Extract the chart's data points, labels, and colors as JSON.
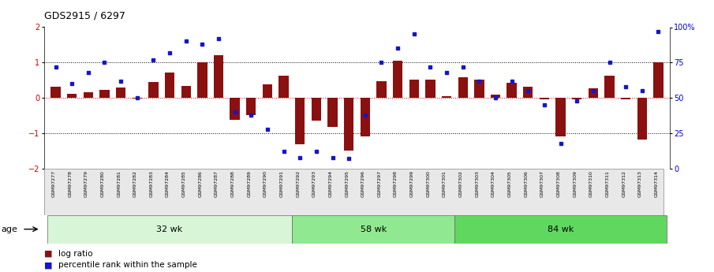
{
  "title": "GDS2915 / 6297",
  "samples": [
    "GSM97277",
    "GSM97278",
    "GSM97279",
    "GSM97280",
    "GSM97281",
    "GSM97282",
    "GSM97283",
    "GSM97284",
    "GSM97285",
    "GSM97286",
    "GSM97287",
    "GSM97288",
    "GSM97289",
    "GSM97290",
    "GSM97291",
    "GSM97292",
    "GSM97293",
    "GSM97294",
    "GSM97295",
    "GSM97296",
    "GSM97297",
    "GSM97298",
    "GSM97299",
    "GSM97300",
    "GSM97301",
    "GSM97302",
    "GSM97303",
    "GSM97304",
    "GSM97305",
    "GSM97306",
    "GSM97307",
    "GSM97308",
    "GSM97309",
    "GSM97310",
    "GSM97311",
    "GSM97312",
    "GSM97313",
    "GSM97314"
  ],
  "log_ratio": [
    0.32,
    0.12,
    0.15,
    0.22,
    0.3,
    -0.02,
    0.45,
    0.72,
    0.35,
    1.0,
    1.2,
    -0.62,
    -0.48,
    0.38,
    0.62,
    -1.32,
    -0.65,
    -0.82,
    -1.5,
    -1.08,
    0.48,
    1.05,
    0.52,
    0.52,
    0.05,
    0.58,
    0.52,
    0.1,
    0.42,
    0.32,
    -0.05,
    -1.08,
    -0.05,
    0.28,
    0.62,
    -0.05,
    -1.18,
    1.0
  ],
  "percentile": [
    0.72,
    0.6,
    0.68,
    0.75,
    0.62,
    0.5,
    0.77,
    0.82,
    0.9,
    0.88,
    0.92,
    0.4,
    0.38,
    0.28,
    0.12,
    0.08,
    0.12,
    0.08,
    0.07,
    0.38,
    0.75,
    0.85,
    0.95,
    0.72,
    0.68,
    0.72,
    0.62,
    0.5,
    0.62,
    0.55,
    0.45,
    0.18,
    0.48,
    0.55,
    0.75,
    0.58,
    0.55,
    0.97
  ],
  "groups": [
    {
      "label": "32 wk",
      "start": 0,
      "end": 15,
      "color": "#d8f5d8"
    },
    {
      "label": "58 wk",
      "start": 15,
      "end": 25,
      "color": "#90e890"
    },
    {
      "label": "84 wk",
      "start": 25,
      "end": 38,
      "color": "#60d860"
    }
  ],
  "bar_color": "#8B1010",
  "dot_color": "#1515CC",
  "ylim": [
    -2,
    2
  ],
  "right_ylim": [
    0,
    100
  ],
  "right_yticks": [
    0,
    25,
    50,
    75,
    100
  ],
  "right_yticklabels": [
    "0",
    "25",
    "50",
    "75",
    "100%"
  ],
  "left_yticks": [
    -2,
    -1,
    0,
    1,
    2
  ],
  "dotted_lines": [
    -1,
    1
  ],
  "zero_line_y": 0,
  "background_color": "#ffffff"
}
